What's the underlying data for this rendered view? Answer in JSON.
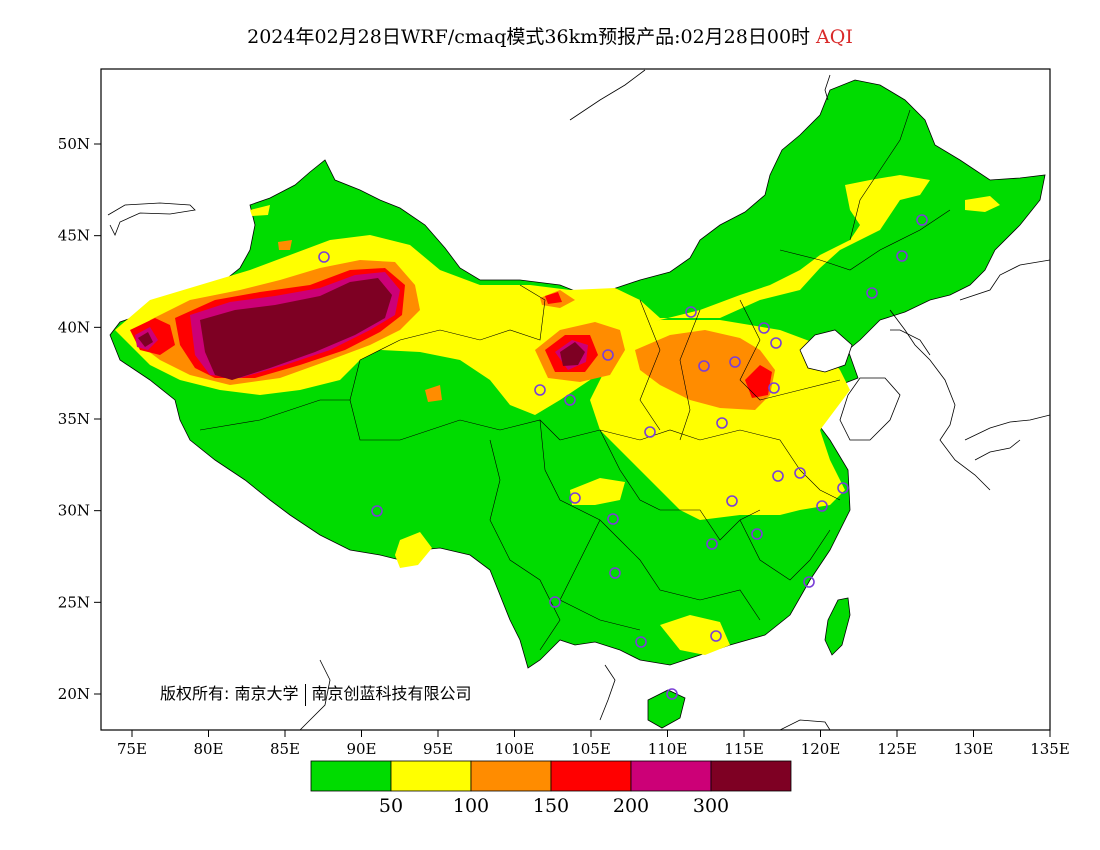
{
  "title": {
    "main": "2024年02月28日WRF/cmaq模式36km预报产品:02月28日00时",
    "variable": "AQI"
  },
  "copyright": {
    "prefix": "版权所有:",
    "org1": "南京大学",
    "org2": "南京创蓝科技有限公司"
  },
  "axes": {
    "x_ticks": [
      "75E",
      "80E",
      "85E",
      "90E",
      "95E",
      "100E",
      "105E",
      "110E",
      "115E",
      "120E",
      "125E",
      "130E",
      "135E"
    ],
    "y_ticks": [
      "50N",
      "45N",
      "40N",
      "35N",
      "30N",
      "25N",
      "20N"
    ]
  },
  "colorbar": {
    "colors": [
      "#00dc00",
      "#ffff00",
      "#ff8c00",
      "#ff0000",
      "#cc0077",
      "#7e0023"
    ],
    "labels": [
      "50",
      "100",
      "150",
      "200",
      "300"
    ]
  },
  "stations_icon": "circle-marker-icon"
}
